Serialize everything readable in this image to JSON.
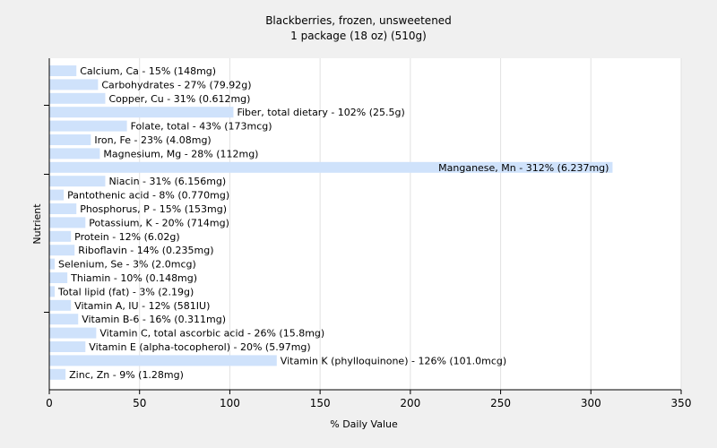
{
  "chart_data": {
    "type": "bar",
    "orientation": "horizontal",
    "title": "Blackberries, frozen, unsweetened",
    "subtitle": "1 package (18 oz) (510g)",
    "xlabel": "% Daily Value",
    "ylabel": "Nutrient",
    "xlim": [
      0,
      350
    ],
    "xticks": [
      0,
      50,
      100,
      150,
      200,
      250,
      300,
      350
    ],
    "grid": true,
    "legend": "none",
    "bar_color": "#cfe2fb",
    "bars": [
      {
        "category": "Calcium, Ca",
        "value": 15,
        "label": "Calcium, Ca - 15% (148mg)"
      },
      {
        "category": "Carbohydrates",
        "value": 27,
        "label": "Carbohydrates - 27% (79.92g)"
      },
      {
        "category": "Copper, Cu",
        "value": 31,
        "label": "Copper, Cu - 31% (0.612mg)"
      },
      {
        "category": "Fiber, total dietary",
        "value": 102,
        "label": "Fiber, total dietary - 102% (25.5g)"
      },
      {
        "category": "Folate, total",
        "value": 43,
        "label": "Folate, total - 43% (173mcg)"
      },
      {
        "category": "Iron, Fe",
        "value": 23,
        "label": "Iron, Fe - 23% (4.08mg)"
      },
      {
        "category": "Magnesium, Mg",
        "value": 28,
        "label": "Magnesium, Mg - 28% (112mg)"
      },
      {
        "category": "Manganese, Mn",
        "value": 312,
        "label": "Manganese, Mn - 312% (6.237mg)"
      },
      {
        "category": "Niacin",
        "value": 31,
        "label": "Niacin - 31% (6.156mg)"
      },
      {
        "category": "Pantothenic acid",
        "value": 8,
        "label": "Pantothenic acid - 8% (0.770mg)"
      },
      {
        "category": "Phosphorus, P",
        "value": 15,
        "label": "Phosphorus, P - 15% (153mg)"
      },
      {
        "category": "Potassium, K",
        "value": 20,
        "label": "Potassium, K - 20% (714mg)"
      },
      {
        "category": "Protein",
        "value": 12,
        "label": "Protein - 12% (6.02g)"
      },
      {
        "category": "Riboflavin",
        "value": 14,
        "label": "Riboflavin - 14% (0.235mg)"
      },
      {
        "category": "Selenium, Se",
        "value": 3,
        "label": "Selenium, Se - 3% (2.0mcg)"
      },
      {
        "category": "Thiamin",
        "value": 10,
        "label": "Thiamin - 10% (0.148mg)"
      },
      {
        "category": "Total lipid (fat)",
        "value": 3,
        "label": "Total lipid (fat) - 3% (2.19g)"
      },
      {
        "category": "Vitamin A, IU",
        "value": 12,
        "label": "Vitamin A, IU - 12% (581IU)"
      },
      {
        "category": "Vitamin B-6",
        "value": 16,
        "label": "Vitamin B-6 - 16% (0.311mg)"
      },
      {
        "category": "Vitamin C, total ascorbic acid",
        "value": 26,
        "label": "Vitamin C, total ascorbic acid - 26% (15.8mg)"
      },
      {
        "category": "Vitamin E (alpha-tocopherol)",
        "value": 20,
        "label": "Vitamin E (alpha-tocopherol) - 20% (5.97mg)"
      },
      {
        "category": "Vitamin K (phylloquinone)",
        "value": 126,
        "label": "Vitamin K (phylloquinone) - 126% (101.0mcg)"
      },
      {
        "category": "Zinc, Zn",
        "value": 9,
        "label": "Zinc, Zn - 9% (1.28mg)"
      }
    ]
  }
}
